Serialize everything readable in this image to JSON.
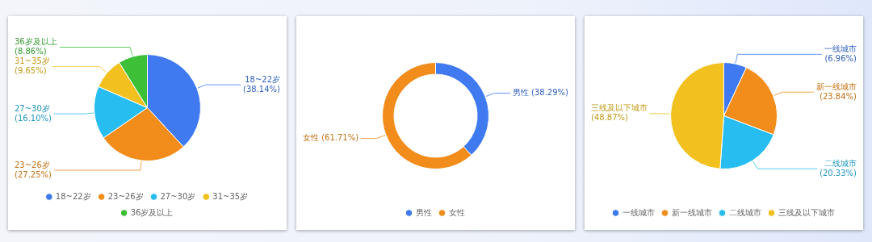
{
  "chart_data": [
    {
      "type": "pie",
      "categories": [
        "18~22岁",
        "23~26岁",
        "27~30岁",
        "31~35岁",
        "36岁及以上"
      ],
      "values": [
        38.14,
        27.25,
        16.1,
        9.65,
        8.86
      ],
      "colors": [
        "#3f7af0",
        "#f28c1a",
        "#27bdf0",
        "#f2c11f",
        "#3dbf38"
      ],
      "value_labels": [
        "18~22岁 (38.14%)",
        "23~26岁 (27.25%)",
        "27~30岁 (16.10%)",
        "31~35岁 (9.65%)",
        "36岁及以上 (8.86%)"
      ],
      "legend": "bottom"
    },
    {
      "type": "donut",
      "categories": [
        "男性",
        "女性"
      ],
      "values": [
        38.29,
        61.71
      ],
      "colors": [
        "#3f7af0",
        "#f28c1a"
      ],
      "value_labels": [
        "男性 (38.29%)",
        "女性 (61.71%)"
      ],
      "legend": "bottom"
    },
    {
      "type": "pie",
      "categories": [
        "一线城市",
        "新一线城市",
        "二线城市",
        "三线及以下城市"
      ],
      "values": [
        6.96,
        23.84,
        20.33,
        48.87
      ],
      "colors": [
        "#3f7af0",
        "#f28c1a",
        "#27bdf0",
        "#f2c11f"
      ],
      "value_labels": [
        "一线城市 (6.96%)",
        "新一线城市 (23.84%)",
        "二线城市 (20.33%)",
        "三线及以下城市 (48.87%)"
      ],
      "legend": "bottom"
    }
  ]
}
